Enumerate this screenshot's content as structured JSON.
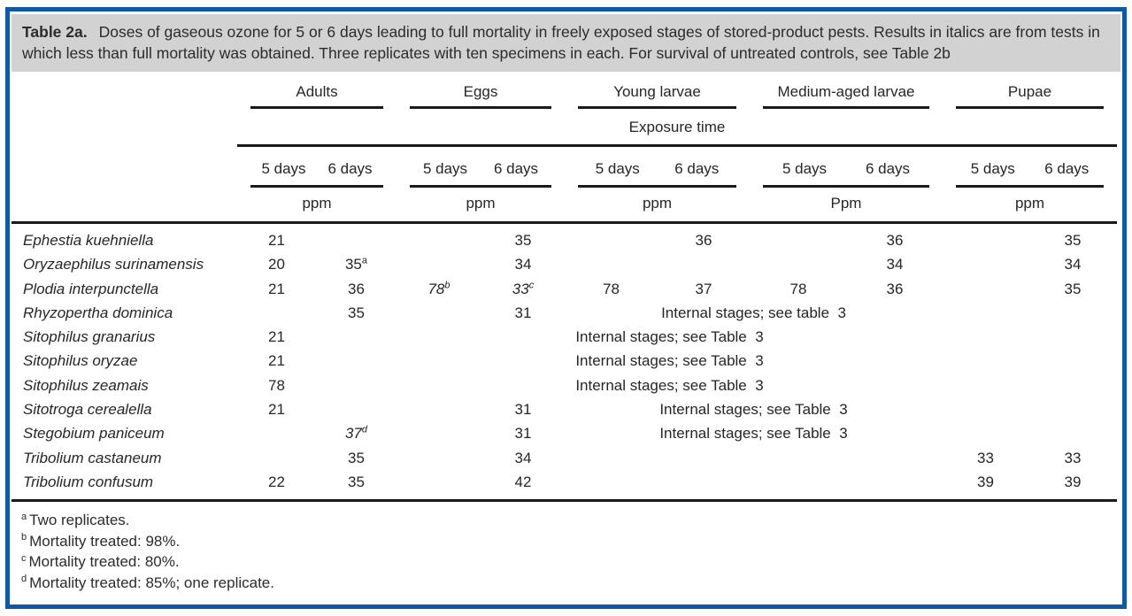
{
  "colors": {
    "frame_blue": "#1057a5",
    "caption_bg": "#d2d2d2"
  },
  "caption": {
    "label": "Table 2a.",
    "text": "Doses of gaseous ozone for 5 or 6 days leading to full mortality in freely exposed stages of stored-product pests. Results in italics are from tests in which less than full mortality was obtained. Three replicates with ten specimens in each. For survival of untreated controls, see Table 2b"
  },
  "table": {
    "exposure_label": "Exposure time",
    "day_labels": [
      "5 days",
      "6 days"
    ],
    "groups": [
      {
        "label": "Adults",
        "unit": "ppm"
      },
      {
        "label": "Eggs",
        "unit": "ppm"
      },
      {
        "label": "Young larvae",
        "unit": "ppm"
      },
      {
        "label": "Medium-aged larvae",
        "unit": "Ppm"
      },
      {
        "label": "Pupae",
        "unit": "ppm"
      }
    ],
    "rows": [
      {
        "species": "Ephestia kuehniella",
        "cells": [
          "21",
          "",
          "",
          "35",
          "",
          "36",
          "",
          "36",
          "",
          "35"
        ]
      },
      {
        "species": "Oryzaephilus surinamensis",
        "cells": [
          "20",
          {
            "v": "35",
            "sup": "a"
          },
          "",
          "34",
          "",
          "",
          "",
          "34",
          "",
          "34"
        ]
      },
      {
        "species": "Plodia interpunctella",
        "cells": [
          "21",
          "36",
          {
            "v": "78",
            "sup": "b",
            "italic": true
          },
          {
            "v": "33",
            "sup": "c",
            "italic": true
          },
          "78",
          "37",
          "78",
          "36",
          "",
          "35"
        ]
      },
      {
        "species": "Rhyzopertha dominica",
        "cells": [
          "",
          "35",
          "",
          "31",
          {
            "v": "Internal stages; see table  3",
            "span": 4
          },
          "",
          ""
        ]
      },
      {
        "species": "Sitophilus granarius",
        "cells": [
          "21",
          "",
          {
            "v": "Internal stages; see Table  3",
            "span": 6
          },
          "",
          ""
        ]
      },
      {
        "species": "Sitophilus oryzae",
        "cells": [
          "21",
          "",
          {
            "v": "Internal stages; see Table  3",
            "span": 6
          },
          "",
          ""
        ]
      },
      {
        "species": "Sitophilus zeamais",
        "cells": [
          "78",
          "",
          {
            "v": "Internal stages; see Table  3",
            "span": 6
          },
          "",
          ""
        ]
      },
      {
        "species": "Sitotroga cerealella",
        "cells": [
          "21",
          "",
          "",
          "31",
          {
            "v": "Internal stages; see Table  3",
            "span": 4
          },
          "",
          ""
        ]
      },
      {
        "species": "Stegobium paniceum",
        "cells": [
          "",
          {
            "v": "37",
            "sup": "d",
            "italic": true
          },
          "",
          "31",
          {
            "v": "Internal stages; see Table  3",
            "span": 4
          },
          "",
          ""
        ]
      },
      {
        "species": "Tribolium castaneum",
        "cells": [
          "",
          "35",
          "",
          "34",
          "",
          "",
          "",
          "",
          "33",
          "33"
        ]
      },
      {
        "species": "Tribolium confusum",
        "cells": [
          "22",
          "35",
          "",
          "42",
          "",
          "",
          "",
          "",
          "39",
          "39"
        ]
      }
    ]
  },
  "footnotes": [
    {
      "sup": "a",
      "text": "Two replicates."
    },
    {
      "sup": "b",
      "text": "Mortality treated: 98%."
    },
    {
      "sup": "c",
      "text": "Mortality treated: 80%."
    },
    {
      "sup": "d",
      "text": "Mortality treated: 85%; one replicate."
    }
  ]
}
